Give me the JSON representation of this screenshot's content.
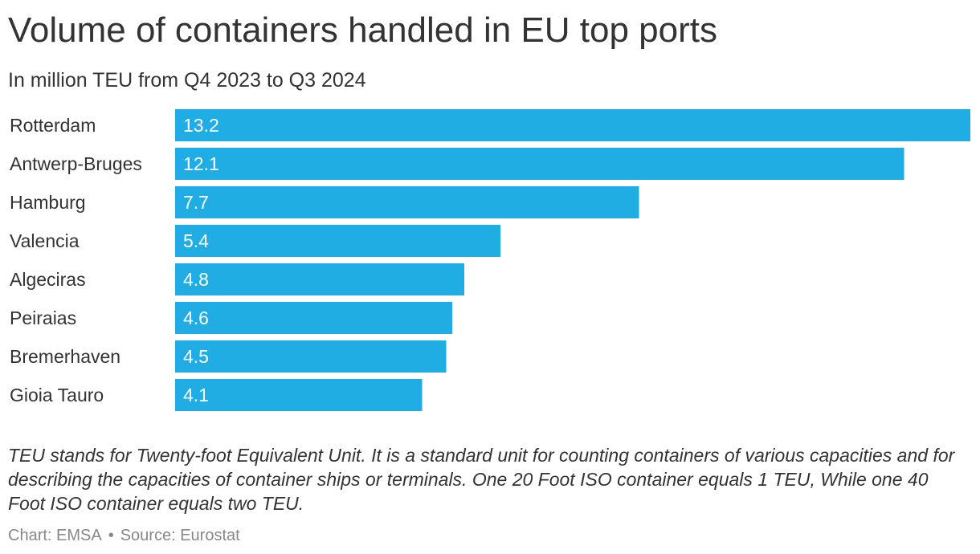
{
  "header": {
    "title": "Volume of containers handled in EU top ports",
    "subtitle": "In million TEU from Q4 2023 to Q3 2024"
  },
  "note": "TEU stands for Twenty-foot Equivalent Unit. It is a standard unit for counting containers of various capacities and for describing the capacities of container ships or terminals. One 20 Foot ISO container equals 1 TEU, While one 40 Foot ISO container equals two TEU.",
  "footer": {
    "chart_credit": "Chart: EMSA",
    "separator": "•",
    "source": "Source: Eurostat"
  },
  "colors": {
    "bar": "#1fade4",
    "bar_label": "#ffffff",
    "category_label": "#333333"
  },
  "chart_data": {
    "type": "bar",
    "orientation": "horizontal",
    "title": "Volume of containers handled in EU top ports",
    "subtitle": "In million TEU from Q4 2023 to Q3 2024",
    "categories": [
      "Rotterdam",
      "Antwerp-Bruges",
      "Hamburg",
      "Valencia",
      "Algeciras",
      "Peiraias",
      "Bremerhaven",
      "Gioia Tauro"
    ],
    "values": [
      13.2,
      12.1,
      7.7,
      5.4,
      4.8,
      4.6,
      4.5,
      4.1
    ],
    "xlim": [
      0,
      13.2
    ],
    "grid": false,
    "legend": "none",
    "data_labels": "inside-left"
  }
}
